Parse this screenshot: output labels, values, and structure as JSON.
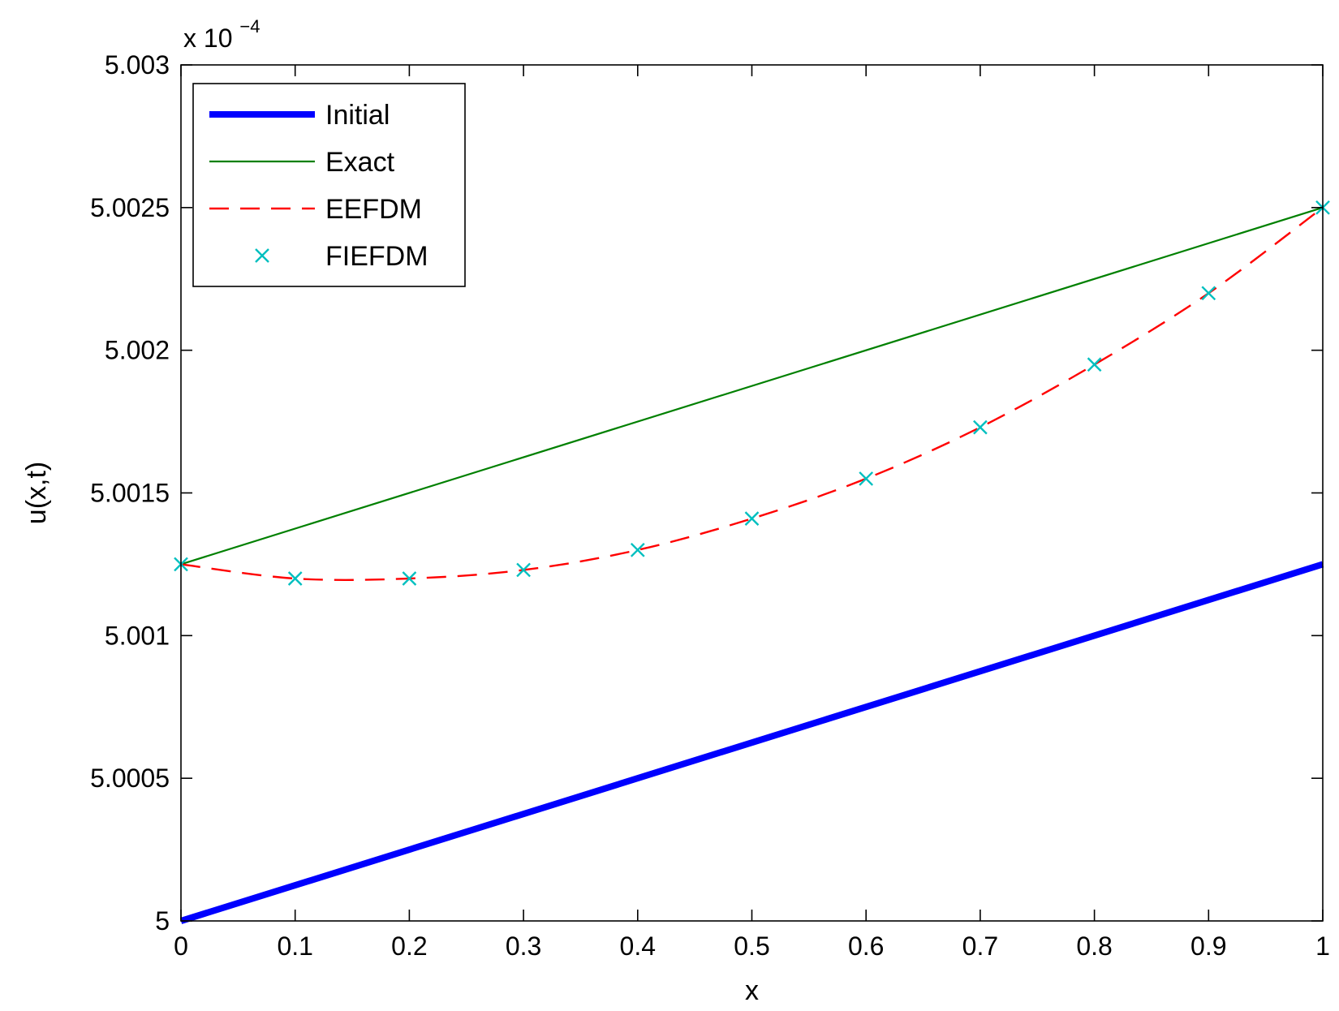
{
  "chart_data": {
    "type": "line",
    "title": "",
    "xlabel": "x",
    "ylabel": "u(x,t)",
    "xlim": [
      0,
      1
    ],
    "ylim": [
      5.0,
      5.003
    ],
    "y_exponent_label": {
      "base": "x 10",
      "exponent": "−4"
    },
    "x_ticks": [
      0,
      0.1,
      0.2,
      0.3,
      0.4,
      0.5,
      0.6,
      0.7,
      0.8,
      0.9,
      1
    ],
    "x_tick_labels": [
      "0",
      "0.1",
      "0.2",
      "0.3",
      "0.4",
      "0.5",
      "0.6",
      "0.7",
      "0.8",
      "0.9",
      "1"
    ],
    "y_ticks": [
      5.0,
      5.0005,
      5.001,
      5.0015,
      5.002,
      5.0025,
      5.003
    ],
    "y_tick_labels": [
      "5",
      "5.0005",
      "5.001",
      "5.0015",
      "5.002",
      "5.0025",
      "5.003"
    ],
    "grid": false,
    "legend_position": "top-left",
    "series": [
      {
        "name": "Initial",
        "style": "line",
        "color": "#0000ff",
        "x": [
          0,
          1
        ],
        "y": [
          5.0,
          5.00125
        ]
      },
      {
        "name": "Exact",
        "style": "line",
        "color": "#008000",
        "x": [
          0,
          1
        ],
        "y": [
          5.00125,
          5.0025
        ]
      },
      {
        "name": "EEFDM",
        "style": "dashed",
        "color": "#ff0000",
        "x": [
          0,
          0.1,
          0.2,
          0.3,
          0.4,
          0.5,
          0.6,
          0.7,
          0.8,
          0.9,
          1
        ],
        "y": [
          5.00125,
          5.0012,
          5.0012,
          5.00123,
          5.0013,
          5.00141,
          5.00155,
          5.00173,
          5.00195,
          5.0022,
          5.0025
        ]
      },
      {
        "name": "FIEFDM",
        "style": "marker-x",
        "color": "#00bfbf",
        "x": [
          0,
          0.1,
          0.2,
          0.3,
          0.4,
          0.5,
          0.6,
          0.7,
          0.8,
          0.9,
          1
        ],
        "y": [
          5.00125,
          5.0012,
          5.0012,
          5.00123,
          5.0013,
          5.00141,
          5.00155,
          5.00173,
          5.00195,
          5.0022,
          5.0025
        ]
      }
    ]
  }
}
